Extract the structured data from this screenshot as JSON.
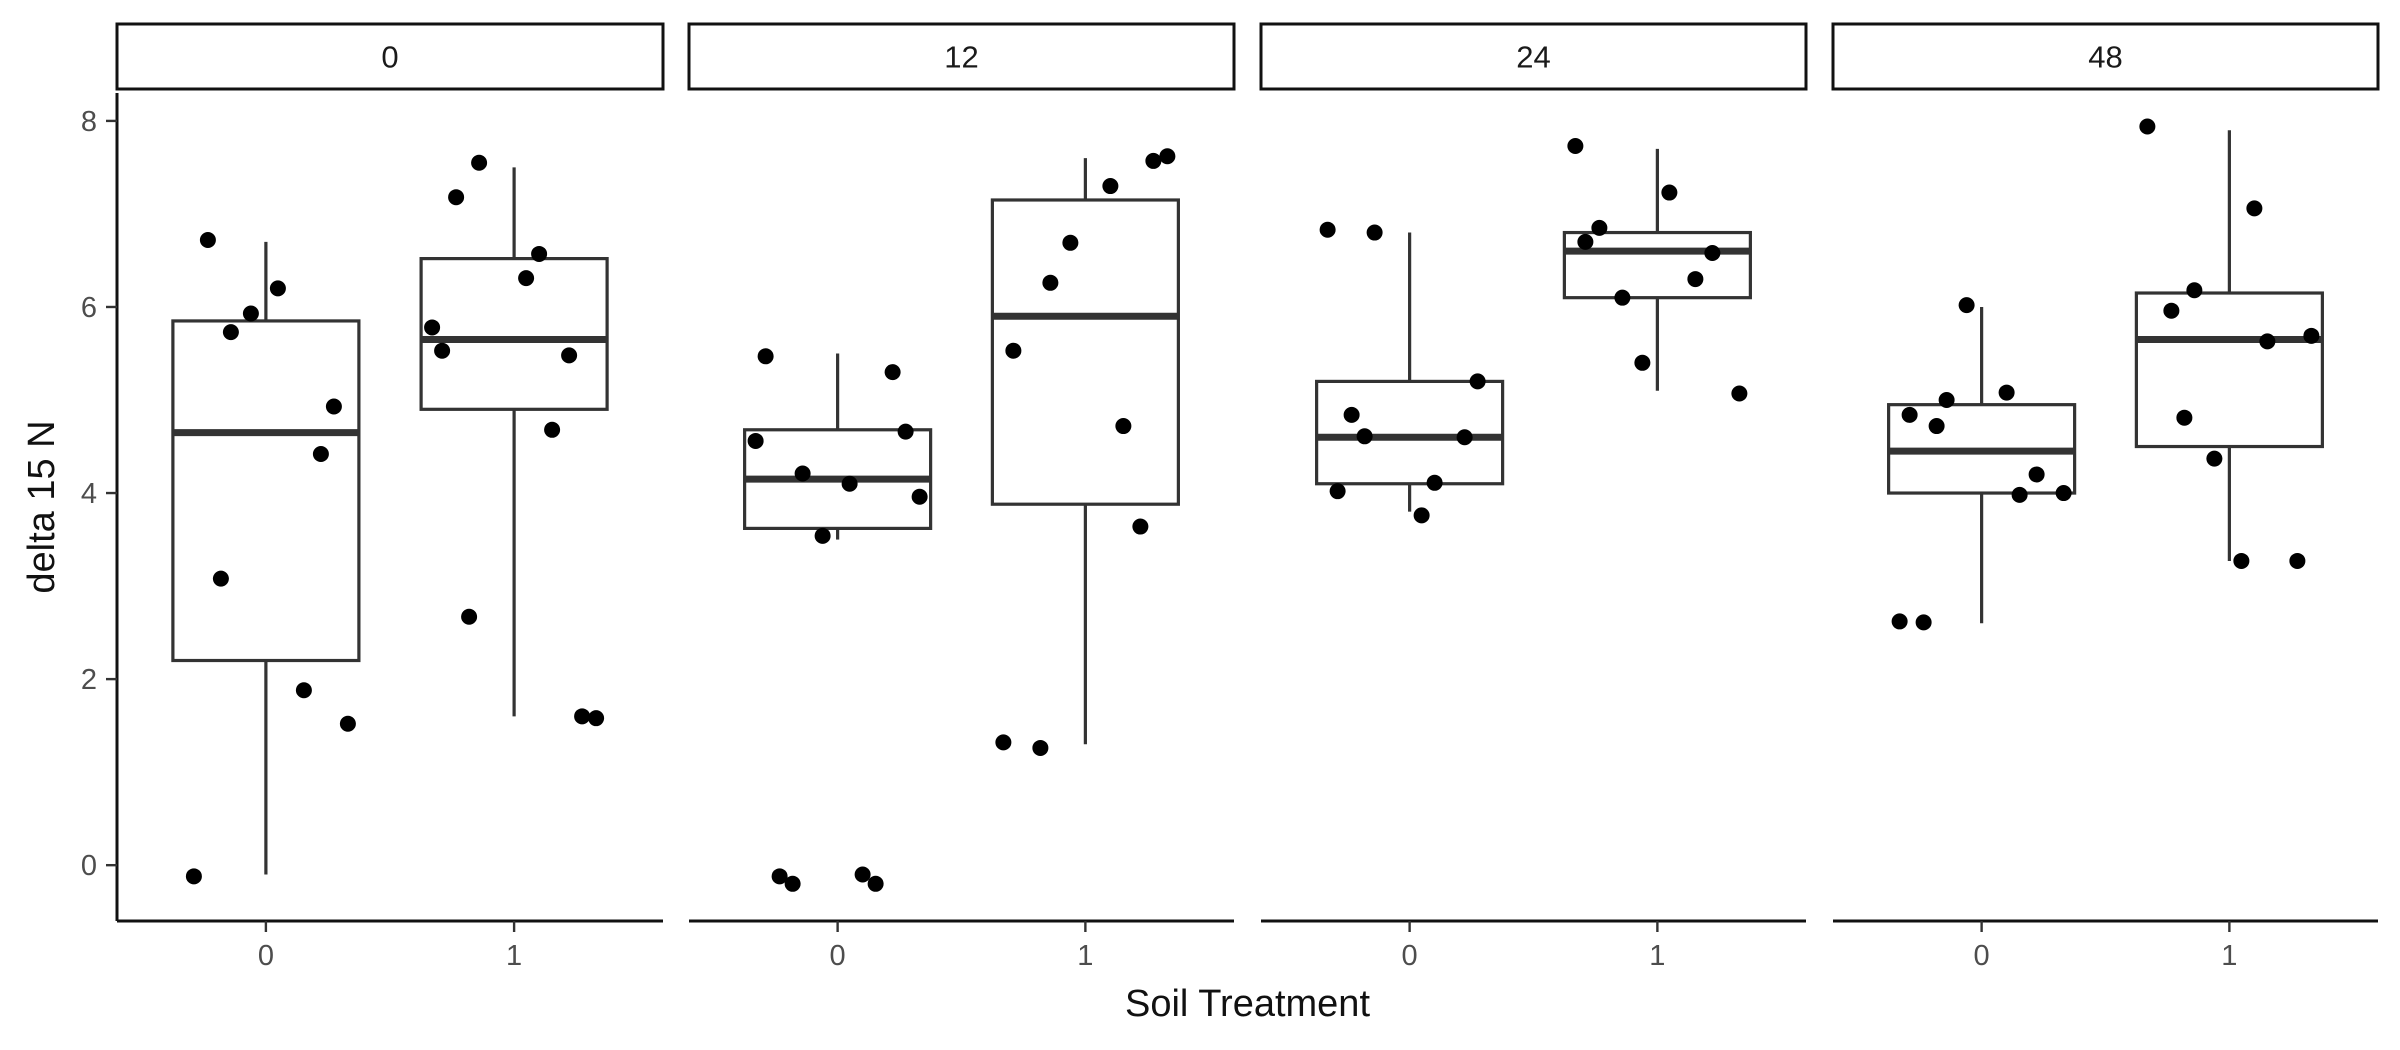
{
  "chart_data": {
    "type": "boxplot",
    "xlabel": "Soil Treatment",
    "ylabel": "delta 15 N",
    "ylim": [
      -0.6,
      8.3
    ],
    "y_ticks": [
      0,
      2,
      4,
      6,
      8
    ],
    "x_categories": [
      "0",
      "1"
    ],
    "facet_variable_levels": [
      "0",
      "12",
      "24",
      "48"
    ],
    "facets": [
      {
        "label": "0",
        "groups": [
          {
            "x": "0",
            "box": {
              "lower_whisker": -0.1,
              "q1": 2.2,
              "median": 4.65,
              "q3": 5.85,
              "upper_whisker": 6.7
            },
            "points": [
              -0.12,
              4.42,
              5.73,
              1.52,
              5.93,
              1.88,
              6.72,
              6.2,
              4.93,
              3.08
            ]
          },
          {
            "x": "1",
            "box": {
              "lower_whisker": 1.6,
              "q1": 4.9,
              "median": 5.65,
              "q3": 6.52,
              "upper_whisker": 7.5
            },
            "points": [
              4.68,
              7.18,
              6.31,
              1.6,
              2.67,
              6.57,
              5.78,
              5.53,
              5.48,
              7.55,
              1.58
            ]
          }
        ]
      },
      {
        "label": "12",
        "groups": [
          {
            "x": "0",
            "box": {
              "lower_whisker": 3.5,
              "q1": 3.62,
              "median": 4.15,
              "q3": 4.68,
              "upper_whisker": 5.5
            },
            "points": [
              3.96,
              3.54,
              -0.2,
              -0.12,
              4.1,
              4.66,
              -0.2,
              -0.1,
              4.56,
              5.47,
              5.3,
              4.21
            ]
          },
          {
            "x": "1",
            "box": {
              "lower_whisker": 1.3,
              "q1": 3.88,
              "median": 5.9,
              "q3": 7.15,
              "upper_whisker": 7.6
            },
            "points": [
              7.57,
              1.26,
              7.3,
              1.32,
              5.53,
              3.64,
              6.26,
              7.62,
              6.69,
              4.72
            ]
          }
        ]
      },
      {
        "label": "24",
        "groups": [
          {
            "x": "0",
            "box": {
              "lower_whisker": 3.8,
              "q1": 4.1,
              "median": 4.6,
              "q3": 5.2,
              "upper_whisker": 6.8
            },
            "points": [
              4.84,
              3.76,
              5.2,
              4.61,
              4.11,
              6.83,
              4.02,
              4.6,
              6.8
            ]
          },
          {
            "x": "1",
            "box": {
              "lower_whisker": 5.1,
              "q1": 6.1,
              "median": 6.6,
              "q3": 6.8,
              "upper_whisker": 7.7
            },
            "points": [
              7.73,
              6.7,
              6.58,
              6.1,
              5.07,
              5.4,
              6.3,
              6.85,
              7.23
            ]
          }
        ]
      },
      {
        "label": "48",
        "groups": [
          {
            "x": "0",
            "box": {
              "lower_whisker": 2.6,
              "q1": 4.0,
              "median": 4.45,
              "q3": 4.95,
              "upper_whisker": 6.0
            },
            "points": [
              4.72,
              5.08,
              2.62,
              4.84,
              4.2,
              5.0,
              4.0,
              6.02,
              3.98,
              2.61
            ]
          },
          {
            "x": "1",
            "box": {
              "lower_whisker": 3.27,
              "q1": 4.5,
              "median": 5.65,
              "q3": 6.15,
              "upper_whisker": 7.9
            },
            "points": [
              6.18,
              5.69,
              4.37,
              5.63,
              5.96,
              3.27,
              3.27,
              4.81,
              7.06,
              7.94
            ]
          }
        ]
      }
    ]
  }
}
